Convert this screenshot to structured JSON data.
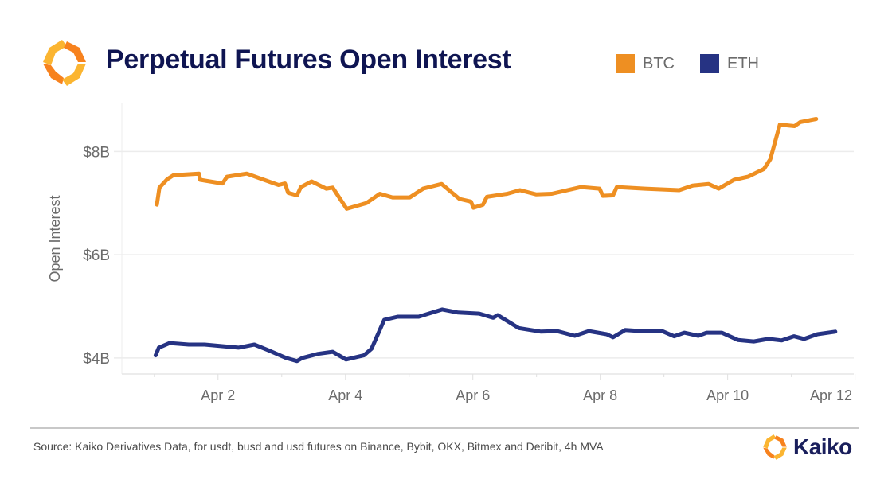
{
  "header": {
    "title": "Perpetual Futures Open Interest",
    "logo_icon": "kaiko-hexagon-logo-icon"
  },
  "legend": [
    {
      "label": "BTC",
      "color": "#ee8f22"
    },
    {
      "label": "ETH",
      "color": "#263383"
    }
  ],
  "footer": {
    "source": "Source: Kaiko Derivatives Data, for usdt, busd and usd futures on Binance, Bybit, OKX, Bitmex and Deribit, 4h MVA",
    "brand": "Kaiko"
  },
  "colors": {
    "btc": "#ee8f22",
    "eth": "#263383",
    "title": "#0f1552",
    "logo_light": "#fbb531",
    "logo_dark": "#f7821e"
  },
  "chart_data": {
    "type": "line",
    "title": "Perpetual Futures Open Interest",
    "xlabel": "",
    "ylabel": "Open Interest",
    "x_unit": "day of April",
    "xlim": [
      0.49,
      11.98
    ],
    "ylim": [
      3.69,
      8.93
    ],
    "y_unit": "$B",
    "yticks": [
      4,
      6,
      8
    ],
    "ytick_labels": [
      "$4B",
      "$6B",
      "$8B"
    ],
    "xticks": [
      2,
      4,
      6,
      8,
      10,
      12
    ],
    "xtick_labels": [
      "Apr 2",
      "Apr 4",
      "Apr 6",
      "Apr 8",
      "Apr 10",
      "Apr 12"
    ],
    "grid": "horizontal",
    "legend_position": "top-right",
    "series": [
      {
        "name": "BTC",
        "color": "#ee8f22",
        "points": [
          [
            1.04,
            6.97
          ],
          [
            1.08,
            7.3
          ],
          [
            1.2,
            7.46
          ],
          [
            1.3,
            7.54
          ],
          [
            1.7,
            7.57
          ],
          [
            1.72,
            7.45
          ],
          [
            2.07,
            7.38
          ],
          [
            2.14,
            7.51
          ],
          [
            2.45,
            7.57
          ],
          [
            2.7,
            7.46
          ],
          [
            2.95,
            7.35
          ],
          [
            3.05,
            7.38
          ],
          [
            3.1,
            7.2
          ],
          [
            3.24,
            7.15
          ],
          [
            3.3,
            7.31
          ],
          [
            3.47,
            7.42
          ],
          [
            3.7,
            7.28
          ],
          [
            3.8,
            7.3
          ],
          [
            4.02,
            6.89
          ],
          [
            4.33,
            7.0
          ],
          [
            4.54,
            7.18
          ],
          [
            4.74,
            7.11
          ],
          [
            5.01,
            7.11
          ],
          [
            5.22,
            7.28
          ],
          [
            5.51,
            7.37
          ],
          [
            5.79,
            7.08
          ],
          [
            5.97,
            7.03
          ],
          [
            6.01,
            6.91
          ],
          [
            6.16,
            6.97
          ],
          [
            6.22,
            7.12
          ],
          [
            6.54,
            7.18
          ],
          [
            6.74,
            7.25
          ],
          [
            6.99,
            7.17
          ],
          [
            7.24,
            7.18
          ],
          [
            7.7,
            7.31
          ],
          [
            7.99,
            7.28
          ],
          [
            8.04,
            7.14
          ],
          [
            8.2,
            7.15
          ],
          [
            8.26,
            7.31
          ],
          [
            8.7,
            7.28
          ],
          [
            9.24,
            7.25
          ],
          [
            9.45,
            7.34
          ],
          [
            9.7,
            7.37
          ],
          [
            9.86,
            7.28
          ],
          [
            10.1,
            7.45
          ],
          [
            10.32,
            7.51
          ],
          [
            10.57,
            7.66
          ],
          [
            10.67,
            7.85
          ],
          [
            10.82,
            8.52
          ],
          [
            11.05,
            8.49
          ],
          [
            11.14,
            8.57
          ],
          [
            11.39,
            8.63
          ]
        ]
      },
      {
        "name": "ETH",
        "color": "#263383",
        "points": [
          [
            1.02,
            4.05
          ],
          [
            1.07,
            4.2
          ],
          [
            1.24,
            4.29
          ],
          [
            1.54,
            4.26
          ],
          [
            1.79,
            4.26
          ],
          [
            2.32,
            4.2
          ],
          [
            2.57,
            4.26
          ],
          [
            2.79,
            4.15
          ],
          [
            3.07,
            4.0
          ],
          [
            3.24,
            3.94
          ],
          [
            3.32,
            4.0
          ],
          [
            3.57,
            4.08
          ],
          [
            3.8,
            4.12
          ],
          [
            4.01,
            3.97
          ],
          [
            4.29,
            4.05
          ],
          [
            4.41,
            4.18
          ],
          [
            4.61,
            4.74
          ],
          [
            4.82,
            4.8
          ],
          [
            5.15,
            4.8
          ],
          [
            5.52,
            4.94
          ],
          [
            5.77,
            4.88
          ],
          [
            6.1,
            4.86
          ],
          [
            6.32,
            4.78
          ],
          [
            6.39,
            4.83
          ],
          [
            6.72,
            4.58
          ],
          [
            7.07,
            4.51
          ],
          [
            7.32,
            4.52
          ],
          [
            7.6,
            4.43
          ],
          [
            7.82,
            4.52
          ],
          [
            8.1,
            4.46
          ],
          [
            8.2,
            4.4
          ],
          [
            8.39,
            4.54
          ],
          [
            8.65,
            4.52
          ],
          [
            8.97,
            4.52
          ],
          [
            9.16,
            4.42
          ],
          [
            9.32,
            4.49
          ],
          [
            9.54,
            4.43
          ],
          [
            9.67,
            4.49
          ],
          [
            9.91,
            4.49
          ],
          [
            10.16,
            4.35
          ],
          [
            10.41,
            4.32
          ],
          [
            10.64,
            4.37
          ],
          [
            10.85,
            4.34
          ],
          [
            11.04,
            4.42
          ],
          [
            11.2,
            4.37
          ],
          [
            11.41,
            4.46
          ],
          [
            11.69,
            4.51
          ]
        ]
      }
    ]
  }
}
